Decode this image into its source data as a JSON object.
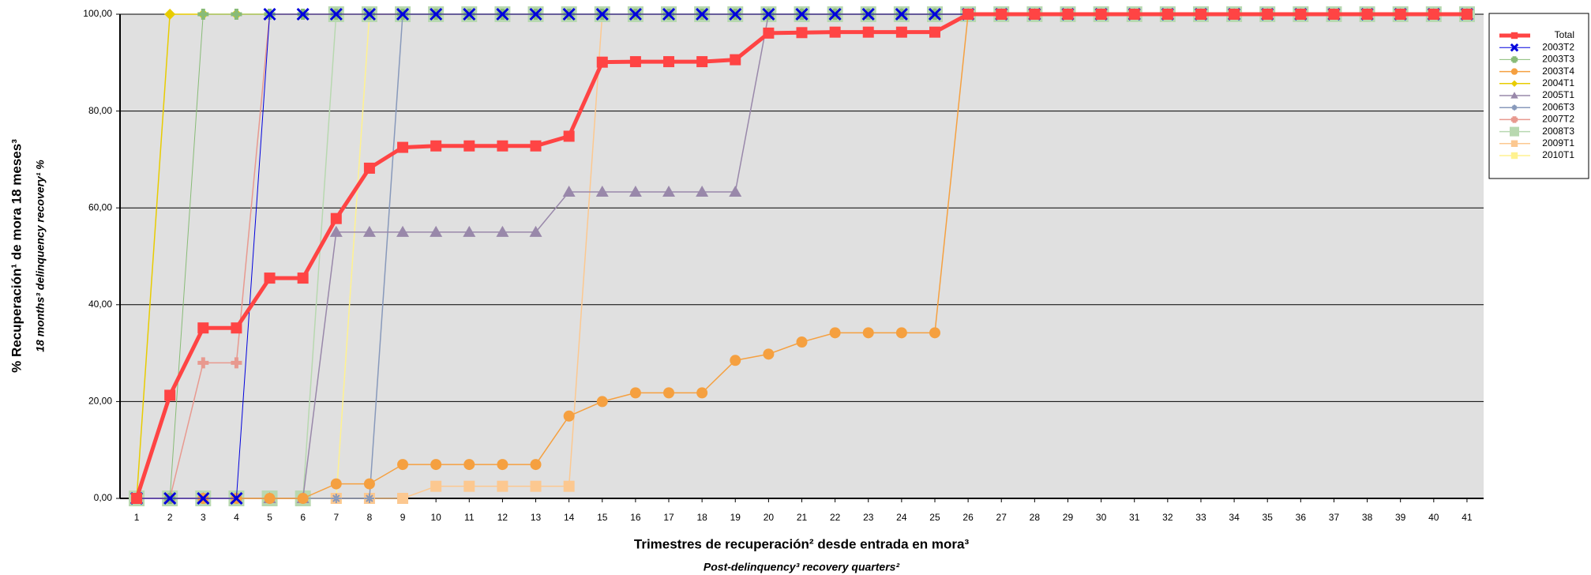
{
  "chart_data": {
    "type": "line",
    "y_title": "% Recuperación¹ de mora 18 meses³",
    "y_subtitle": "18 months³ delinquency recovery¹ %",
    "x_title": "Trimestres de recuperación² desde entrada en mora³",
    "x_subtitle": "Post-delinquency³ recovery quarters²",
    "x": [
      1,
      2,
      3,
      4,
      5,
      6,
      7,
      8,
      9,
      10,
      11,
      12,
      13,
      14,
      15,
      16,
      17,
      18,
      19,
      20,
      21,
      22,
      23,
      24,
      25,
      26,
      27,
      28,
      29,
      30,
      31,
      32,
      33,
      34,
      35,
      36,
      37,
      38,
      39,
      40,
      41
    ],
    "xlim": [
      0.5,
      41.5
    ],
    "xticks": [
      1,
      2,
      3,
      4,
      5,
      6,
      7,
      8,
      9,
      10,
      11,
      12,
      13,
      14,
      15,
      16,
      17,
      18,
      19,
      20,
      21,
      22,
      23,
      24,
      25,
      26,
      27,
      28,
      29,
      30,
      31,
      32,
      33,
      34,
      35,
      36,
      37,
      38,
      39,
      40,
      41
    ],
    "ylim": [
      0,
      100
    ],
    "yticks": [
      {
        "value": 0,
        "label": "0,00"
      },
      {
        "value": 20,
        "label": "20,00"
      },
      {
        "value": 40,
        "label": "40,00"
      },
      {
        "value": 60,
        "label": "60,00"
      },
      {
        "value": 80,
        "label": "80,00"
      },
      {
        "value": 100,
        "label": "100,00"
      }
    ],
    "grid": true,
    "legend": "right",
    "series": [
      {
        "name": "Total",
        "color": "#ff4444",
        "marker": "square",
        "width": 5,
        "values": [
          0,
          21.3,
          35.2,
          35.2,
          45.5,
          45.5,
          57.8,
          68.2,
          72.5,
          72.8,
          72.8,
          72.8,
          72.8,
          74.8,
          90.1,
          90.2,
          90.2,
          90.2,
          90.6,
          96.1,
          96.2,
          96.3,
          96.3,
          96.3,
          96.3,
          100,
          100,
          100,
          100,
          100,
          100,
          100,
          100,
          100,
          100,
          100,
          100,
          100,
          100,
          100,
          100
        ]
      },
      {
        "name": "2003T2",
        "color": "#0000dd",
        "marker": "x",
        "width": 1,
        "values": [
          0,
          0,
          0,
          0,
          100,
          100,
          100,
          100,
          100,
          100,
          100,
          100,
          100,
          100,
          100,
          100,
          100,
          100,
          100,
          100,
          100,
          100,
          100,
          100,
          100,
          100,
          100,
          100,
          100,
          100,
          100,
          100,
          100,
          100,
          100,
          100,
          100,
          100,
          100,
          100,
          100
        ]
      },
      {
        "name": "2003T3",
        "color": "#88bb77",
        "marker": "plus",
        "width": 1,
        "values": [
          0,
          0,
          100,
          100,
          100,
          100,
          100,
          100,
          100,
          100,
          100,
          100,
          100,
          100,
          100,
          100,
          100,
          100,
          100,
          100,
          100,
          100,
          100,
          100,
          100,
          100,
          100,
          100,
          100,
          100,
          100,
          100,
          100,
          100,
          100,
          100,
          100,
          100,
          100,
          100,
          100
        ]
      },
      {
        "name": "2003T4",
        "color": "#f5a040",
        "marker": "circle",
        "width": 1.5,
        "values": [
          0,
          0,
          0,
          0,
          0,
          0,
          3,
          3,
          7,
          7,
          7,
          7,
          7,
          17,
          20,
          21.8,
          21.8,
          21.8,
          28.5,
          29.8,
          32.3,
          34.2,
          34.2,
          34.2,
          34.2,
          100,
          100,
          100,
          100,
          100,
          100,
          100,
          100,
          100,
          100,
          100,
          100,
          100,
          100,
          100,
          100
        ]
      },
      {
        "name": "2004T1",
        "color": "#e8cc00",
        "marker": "diamond",
        "width": 1.5,
        "values": [
          0,
          100,
          100,
          100,
          100,
          100,
          100,
          100,
          100,
          100,
          100,
          100,
          100,
          100,
          100,
          100,
          100,
          100,
          100,
          100,
          100,
          100,
          100,
          100,
          100,
          100,
          100,
          100,
          100,
          100,
          100,
          100,
          100,
          100,
          100,
          100,
          100,
          100,
          100,
          100,
          100
        ]
      },
      {
        "name": "2005T1",
        "color": "#9988aa",
        "marker": "triangle",
        "width": 1.5,
        "values": [
          0,
          0,
          0,
          0,
          0,
          0,
          55,
          55,
          55,
          55,
          55,
          55,
          55,
          63.3,
          63.3,
          63.3,
          63.3,
          63.3,
          63.3,
          100,
          100,
          100,
          100,
          100,
          100,
          100,
          100,
          100,
          100,
          100,
          100,
          100,
          100,
          100,
          100,
          100,
          100,
          100,
          100,
          100,
          100
        ]
      },
      {
        "name": "2006T3",
        "color": "#8899bb",
        "marker": "star",
        "width": 1.5,
        "values": [
          0,
          0,
          0,
          0,
          0,
          0,
          0,
          0,
          100,
          100,
          100,
          100,
          100,
          100,
          100,
          100,
          100,
          100,
          100,
          100,
          100,
          100,
          100,
          100,
          100,
          100,
          100,
          100,
          100,
          100,
          100,
          100,
          100,
          100,
          100,
          100,
          100,
          100,
          100,
          100,
          100
        ]
      },
      {
        "name": "2007T2",
        "color": "#e8998f",
        "marker": "plus",
        "width": 1.5,
        "values": [
          0,
          0,
          28,
          28,
          100,
          100,
          100,
          100,
          100,
          100,
          100,
          100,
          100,
          100,
          100,
          100,
          100,
          100,
          100,
          100,
          100,
          100,
          100,
          100,
          100,
          100,
          100,
          100,
          100,
          100,
          100,
          100,
          100,
          100,
          100,
          100,
          100,
          100,
          100,
          100,
          100
        ]
      },
      {
        "name": "2008T3",
        "color": "#b8d8b0",
        "marker": "bigsquare",
        "width": 1.5,
        "values": [
          0,
          0,
          0,
          0,
          0,
          0,
          100,
          100,
          100,
          100,
          100,
          100,
          100,
          100,
          100,
          100,
          100,
          100,
          100,
          100,
          100,
          100,
          100,
          100,
          100,
          100,
          100,
          100,
          100,
          100,
          100,
          100,
          100,
          100,
          100,
          100,
          100,
          100,
          100,
          100,
          100
        ]
      },
      {
        "name": "2009T1",
        "color": "#fcc890",
        "marker": "square",
        "width": 1.5,
        "values": [
          0,
          0,
          0,
          0,
          0,
          0,
          0,
          0,
          0,
          2.5,
          2.5,
          2.5,
          2.5,
          2.5,
          100,
          100,
          100,
          100,
          100,
          100,
          100,
          100,
          100,
          100,
          100,
          100,
          100,
          100,
          100,
          100,
          100,
          100,
          100,
          100,
          100,
          100,
          100,
          100,
          100,
          100,
          100
        ]
      },
      {
        "name": "2010T1",
        "color": "#fff290",
        "marker": "square",
        "width": 1.5,
        "values": [
          0,
          0,
          0,
          0,
          0,
          0,
          0,
          100,
          100,
          100,
          100,
          100,
          100,
          100,
          100,
          100,
          100,
          100,
          100,
          100,
          100,
          100,
          100,
          100,
          100,
          100,
          100,
          100,
          100,
          100,
          100,
          100,
          100,
          100,
          100,
          100,
          100,
          100,
          100,
          100,
          100
        ]
      }
    ]
  }
}
